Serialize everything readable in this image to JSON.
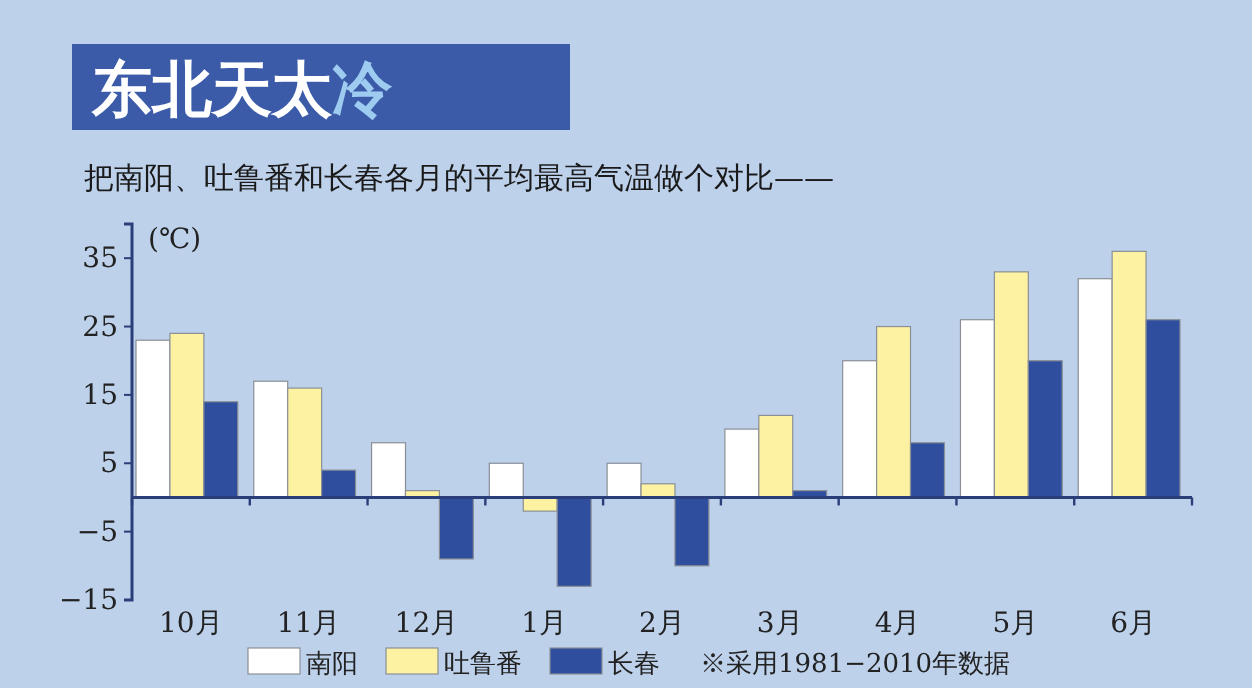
{
  "chart_data": {
    "type": "bar",
    "title": "东北天太冷",
    "subtitle": "把南阳、吐鲁番和长春各月的平均最高气温做个对比——",
    "ylabel": "(℃)",
    "categories": [
      "10月",
      "11月",
      "12月",
      "1月",
      "2月",
      "3月",
      "4月",
      "5月",
      "6月"
    ],
    "series": [
      {
        "name": "南阳",
        "color": "#ffffff",
        "values": [
          23,
          17,
          8,
          5,
          5,
          10,
          20,
          26,
          32
        ]
      },
      {
        "name": "吐鲁番",
        "color": "#fdf1a2",
        "values": [
          24,
          16,
          1,
          -2,
          2,
          12,
          25,
          33,
          36
        ]
      },
      {
        "name": "长春",
        "color": "#2f4f9e",
        "values": [
          14,
          4,
          -9,
          -13,
          -10,
          1,
          8,
          20,
          26
        ]
      }
    ],
    "ylim": [
      -15,
      40
    ],
    "yticks": [
      {
        "value": -15,
        "label": "−15"
      },
      {
        "value": -5,
        "label": "−5"
      },
      5,
      15,
      25,
      35
    ],
    "legend": "bottom",
    "ref_lines": [
      {
        "axis": "y",
        "value": 0,
        "color": "#2a3f7a"
      }
    ],
    "annotations": [
      "※采用1981−2010年数据"
    ]
  }
}
